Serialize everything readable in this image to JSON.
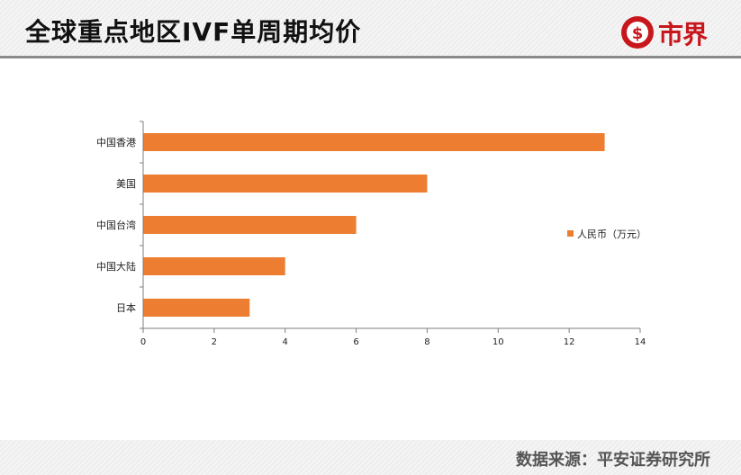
{
  "header": {
    "title": "全球重点地区IVF单周期均价",
    "logo_text": "市界"
  },
  "footer": {
    "source": "数据来源：平安证券研究所"
  },
  "colors": {
    "bar": "#ed7d31",
    "axis": "#7f7f7f",
    "logo_red": "#c8161d"
  },
  "chart_data": {
    "type": "bar",
    "orientation": "horizontal",
    "title": "",
    "categories": [
      "中国香港",
      "美国",
      "中国台湾",
      "中国大陆",
      "日本"
    ],
    "series": [
      {
        "name": "人民币（万元）",
        "values": [
          13,
          8,
          6,
          4,
          3
        ]
      }
    ],
    "xlabel": "",
    "ylabel": "",
    "xlim": [
      0,
      14
    ],
    "xticks": [
      "0",
      "2",
      "4",
      "6",
      "8",
      "10",
      "12",
      "14"
    ],
    "grid": false,
    "legend_position": "right"
  }
}
